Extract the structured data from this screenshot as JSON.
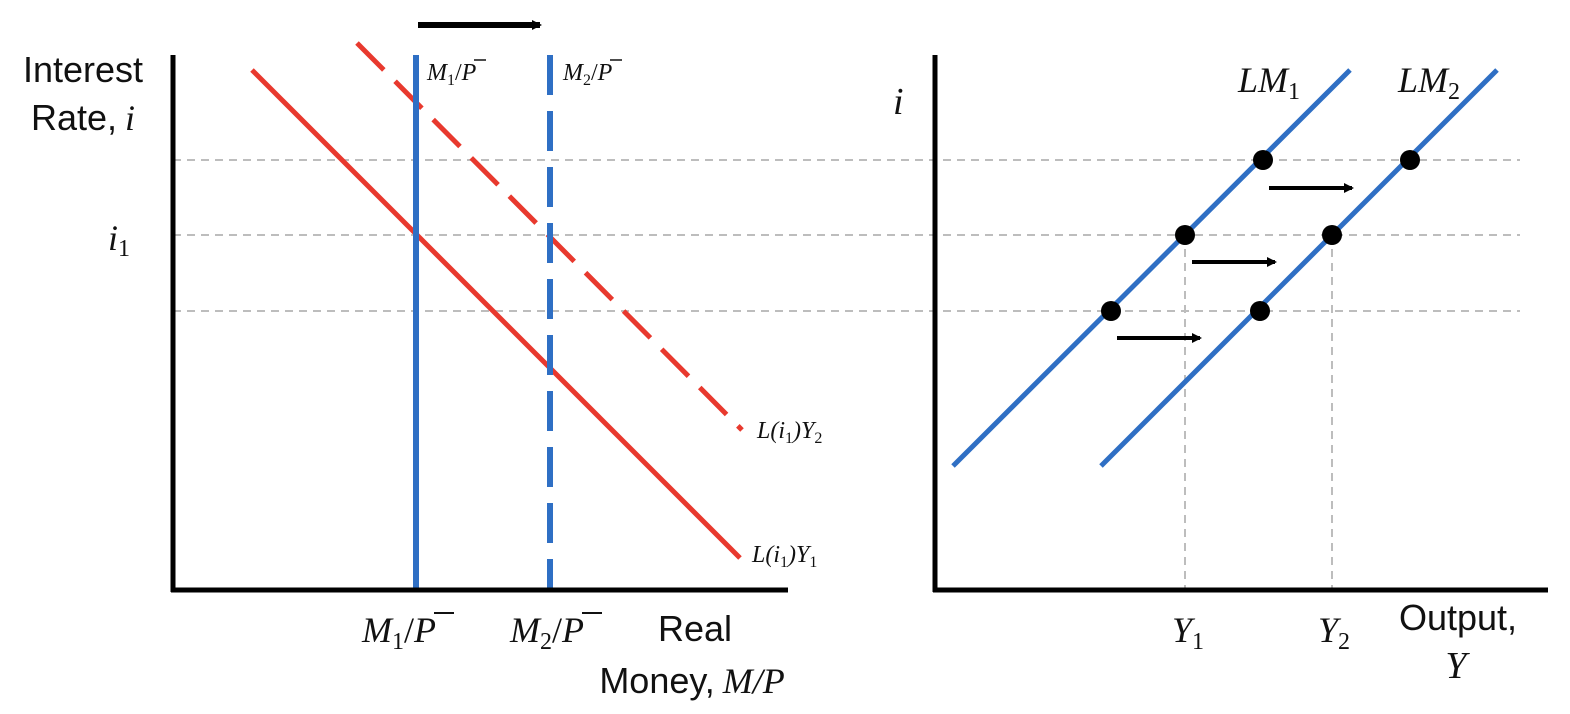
{
  "colors": {
    "supply": "#2f6fc4",
    "demand": "#e8392e",
    "axis": "#000000",
    "guide": "#bdbdbd",
    "point": "#000000"
  },
  "left_panel": {
    "y_axis_label_line1": "Interest",
    "y_axis_label_line2_text": "Rate,",
    "y_axis_label_line2_var": "i",
    "y_tick_var": "i",
    "y_tick_sub": "1",
    "x_axis_label_line1": "Real",
    "x_axis_label_line2_text": "Money,",
    "x_axis_label_line2_var": "M/P",
    "x_tick_1": {
      "m": "M",
      "sub": "1",
      "slash": "/",
      "p": "P"
    },
    "x_tick_2": {
      "m": "M",
      "sub": "2",
      "slash": "/",
      "p": "P"
    },
    "supply_label_1": {
      "m": "M",
      "sub": "1",
      "slash": "/",
      "p": "P"
    },
    "supply_label_2": {
      "m": "M",
      "sub": "2",
      "slash": "/",
      "p": "P"
    },
    "demand_label_1": {
      "prefix": "L(i",
      "sub_i": "1",
      "mid": ")Y",
      "sub_y": "1"
    },
    "demand_label_2": {
      "prefix": "L(i",
      "sub_i": "1",
      "mid": ")Y",
      "sub_y": "2"
    },
    "shift_arrow": "right-arrow-icon"
  },
  "right_panel": {
    "y_axis_label": "i",
    "x_axis_label_line1": "Output,",
    "x_axis_label_line2": "Y",
    "x_tick_1": {
      "var": "Y",
      "sub": "1"
    },
    "x_tick_2": {
      "var": "Y",
      "sub": "2"
    },
    "curve_1": {
      "name": "LM",
      "sub": "1"
    },
    "curve_2": {
      "name": "LM",
      "sub": "2"
    },
    "shift_arrows": [
      "right-arrow-icon",
      "right-arrow-icon",
      "right-arrow-icon"
    ]
  }
}
